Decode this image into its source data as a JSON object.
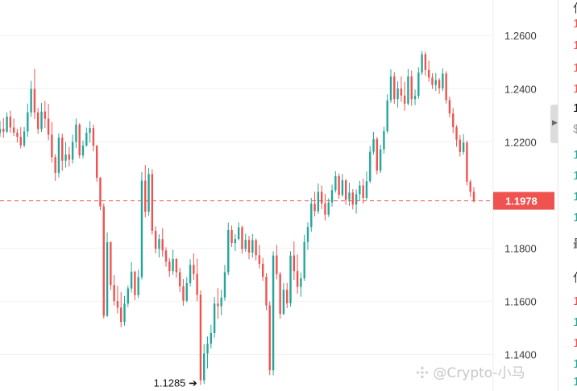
{
  "chart_data": {
    "type": "candlestick",
    "y_axis": {
      "ticks": [
        "1.2600",
        "1.2400",
        "1.2200",
        "1.1800",
        "1.1600",
        "1.1400"
      ],
      "range": [
        1.1262,
        1.2734
      ],
      "position": "right"
    },
    "current_price": {
      "value": 1.1978,
      "label": "1.1978"
    },
    "low_marker": {
      "value": 1.1285,
      "label": "1.1285 ➔"
    },
    "colors": {
      "up": "#26a69a",
      "down": "#ef5350",
      "price_line": "#ef5350",
      "grid": "#f0f0f0"
    },
    "candles": [
      [
        1.2234,
        1.2279,
        1.2219,
        1.2249
      ],
      [
        1.2249,
        1.2289,
        1.2216,
        1.2238
      ],
      [
        1.2238,
        1.2311,
        1.2233,
        1.2295
      ],
      [
        1.2295,
        1.2317,
        1.2234,
        1.2254
      ],
      [
        1.2254,
        1.2288,
        1.2222,
        1.2235
      ],
      [
        1.2235,
        1.2249,
        1.2198,
        1.2219
      ],
      [
        1.2219,
        1.2255,
        1.2175,
        1.2187
      ],
      [
        1.2187,
        1.2256,
        1.2179,
        1.2239
      ],
      [
        1.2239,
        1.2344,
        1.2219,
        1.2311
      ],
      [
        1.2311,
        1.243,
        1.2294,
        1.2399
      ],
      [
        1.2399,
        1.2474,
        1.2286,
        1.2311
      ],
      [
        1.2311,
        1.2328,
        1.223,
        1.2248
      ],
      [
        1.2248,
        1.2346,
        1.2237,
        1.2314
      ],
      [
        1.2314,
        1.2354,
        1.2253,
        1.2287
      ],
      [
        1.2287,
        1.2343,
        1.2206,
        1.2227
      ],
      [
        1.2227,
        1.2275,
        1.2122,
        1.2143
      ],
      [
        1.2143,
        1.2154,
        1.2053,
        1.2083
      ],
      [
        1.2083,
        1.2232,
        1.2066,
        1.2216
      ],
      [
        1.2216,
        1.2231,
        1.2091,
        1.2129
      ],
      [
        1.2129,
        1.2199,
        1.2102,
        1.2152
      ],
      [
        1.2152,
        1.2181,
        1.2107,
        1.2133
      ],
      [
        1.2133,
        1.2227,
        1.2118,
        1.22
      ],
      [
        1.22,
        1.2288,
        1.2177,
        1.2265
      ],
      [
        1.2265,
        1.227,
        1.2138,
        1.2149
      ],
      [
        1.2149,
        1.2205,
        1.2138,
        1.2186
      ],
      [
        1.2186,
        1.2254,
        1.2182,
        1.2234
      ],
      [
        1.2234,
        1.2278,
        1.2197,
        1.2252
      ],
      [
        1.2252,
        1.2265,
        1.2164,
        1.2185
      ],
      [
        1.2185,
        1.2189,
        1.205,
        1.2065
      ],
      [
        1.2065,
        1.2068,
        1.1943,
        1.1957
      ],
      [
        1.1957,
        1.1968,
        1.1535,
        1.1545
      ],
      [
        1.1545,
        1.1859,
        1.1541,
        1.1822
      ],
      [
        1.1822,
        1.1825,
        1.1642,
        1.1661
      ],
      [
        1.1661,
        1.1698,
        1.1584,
        1.1601
      ],
      [
        1.1601,
        1.1658,
        1.1554,
        1.1576
      ],
      [
        1.1576,
        1.1634,
        1.1502,
        1.1522
      ],
      [
        1.1522,
        1.162,
        1.1508,
        1.1591
      ],
      [
        1.1591,
        1.1659,
        1.1578,
        1.1648
      ],
      [
        1.1648,
        1.1747,
        1.1633,
        1.1711
      ],
      [
        1.1711,
        1.1715,
        1.1604,
        1.1623
      ],
      [
        1.1623,
        1.1718,
        1.1612,
        1.1691
      ],
      [
        1.1691,
        1.2086,
        1.1682,
        1.2054
      ],
      [
        1.2054,
        1.2113,
        1.1916,
        1.1937
      ],
      [
        1.1937,
        1.2101,
        1.1922,
        1.2079
      ],
      [
        1.2079,
        1.2097,
        1.1851,
        1.1865
      ],
      [
        1.1865,
        1.1882,
        1.178,
        1.1797
      ],
      [
        1.1797,
        1.1852,
        1.1765,
        1.1834
      ],
      [
        1.1834,
        1.1875,
        1.1768,
        1.1791
      ],
      [
        1.1791,
        1.1803,
        1.173,
        1.1749
      ],
      [
        1.1749,
        1.1762,
        1.1692,
        1.1713
      ],
      [
        1.1713,
        1.1794,
        1.1699,
        1.1759
      ],
      [
        1.1759,
        1.1762,
        1.1688,
        1.1709
      ],
      [
        1.1709,
        1.1726,
        1.1634,
        1.1656
      ],
      [
        1.1656,
        1.1683,
        1.1583,
        1.1602
      ],
      [
        1.1602,
        1.1691,
        1.1596,
        1.1668
      ],
      [
        1.1668,
        1.1758,
        1.1656,
        1.1737
      ],
      [
        1.1737,
        1.178,
        1.168,
        1.1703
      ],
      [
        1.1703,
        1.176,
        1.16,
        1.1624
      ],
      [
        1.1624,
        1.1641,
        1.1285,
        1.1302
      ],
      [
        1.1302,
        1.1438,
        1.1288,
        1.1403
      ],
      [
        1.1403,
        1.1467,
        1.1347,
        1.144
      ],
      [
        1.144,
        1.1511,
        1.1422,
        1.148
      ],
      [
        1.148,
        1.1616,
        1.1463,
        1.1591
      ],
      [
        1.1591,
        1.1649,
        1.1534,
        1.1581
      ],
      [
        1.1581,
        1.1643,
        1.1547,
        1.1614
      ],
      [
        1.1614,
        1.1737,
        1.1602,
        1.1709
      ],
      [
        1.1709,
        1.1896,
        1.1698,
        1.1868
      ],
      [
        1.1868,
        1.1885,
        1.1804,
        1.1819
      ],
      [
        1.1819,
        1.1852,
        1.1789,
        1.1834
      ],
      [
        1.1834,
        1.1897,
        1.1829,
        1.1878
      ],
      [
        1.1878,
        1.1885,
        1.1779,
        1.1796
      ],
      [
        1.1796,
        1.1854,
        1.1786,
        1.1831
      ],
      [
        1.1831,
        1.1846,
        1.1758,
        1.1783
      ],
      [
        1.1783,
        1.1853,
        1.1764,
        1.183
      ],
      [
        1.183,
        1.1836,
        1.1754,
        1.1773
      ],
      [
        1.1773,
        1.1812,
        1.1723,
        1.1741
      ],
      [
        1.1741,
        1.1763,
        1.1677,
        1.1692
      ],
      [
        1.1692,
        1.1706,
        1.1566,
        1.1584
      ],
      [
        1.1584,
        1.1599,
        1.1322,
        1.134
      ],
      [
        1.134,
        1.1788,
        1.1321,
        1.1772
      ],
      [
        1.1772,
        1.1812,
        1.1682,
        1.1702
      ],
      [
        1.1702,
        1.171,
        1.1534,
        1.1552
      ],
      [
        1.1552,
        1.1668,
        1.1548,
        1.1643
      ],
      [
        1.1643,
        1.1669,
        1.1574,
        1.1592
      ],
      [
        1.1592,
        1.1788,
        1.158,
        1.1772
      ],
      [
        1.1772,
        1.1825,
        1.168,
        1.1713
      ],
      [
        1.1713,
        1.1776,
        1.1628,
        1.1654
      ],
      [
        1.1654,
        1.1708,
        1.1617,
        1.1686
      ],
      [
        1.1686,
        1.185,
        1.1677,
        1.1823
      ],
      [
        1.1823,
        1.1897,
        1.1793,
        1.1879
      ],
      [
        1.1879,
        1.1989,
        1.1862,
        1.1967
      ],
      [
        1.1967,
        1.2012,
        1.1919,
        1.1939
      ],
      [
        1.1939,
        1.2043,
        1.1929,
        1.2012
      ],
      [
        1.2012,
        1.2036,
        1.1947,
        1.1968
      ],
      [
        1.1968,
        1.2004,
        1.1904,
        1.1926
      ],
      [
        1.1926,
        1.1987,
        1.1917,
        1.1972
      ],
      [
        1.1972,
        1.2039,
        1.1956,
        1.2018
      ],
      [
        1.2018,
        1.209,
        1.2009,
        1.2071
      ],
      [
        1.2071,
        1.2081,
        1.1986,
        1.2
      ],
      [
        1.2,
        1.2079,
        1.1993,
        1.2055
      ],
      [
        1.2055,
        1.206,
        1.1963,
        1.1982
      ],
      [
        1.1982,
        1.2046,
        1.1959,
        1.2009
      ],
      [
        1.2009,
        1.2022,
        1.1946,
        1.1964
      ],
      [
        1.1964,
        1.2021,
        1.193,
        1.2003
      ],
      [
        1.2003,
        1.2053,
        1.1978,
        1.2036
      ],
      [
        1.2036,
        1.2061,
        1.1967,
        1.1989
      ],
      [
        1.1989,
        1.2088,
        1.1981,
        1.2052
      ],
      [
        1.2052,
        1.2184,
        1.2044,
        1.2163
      ],
      [
        1.2163,
        1.2238,
        1.2152,
        1.221
      ],
      [
        1.221,
        1.2219,
        1.2078,
        1.2092
      ],
      [
        1.2092,
        1.2189,
        1.2083,
        1.2172
      ],
      [
        1.2172,
        1.2257,
        1.2156,
        1.224
      ],
      [
        1.224,
        1.2379,
        1.2232,
        1.2356
      ],
      [
        1.2356,
        1.2473,
        1.2347,
        1.2446
      ],
      [
        1.2446,
        1.2463,
        1.2343,
        1.2361
      ],
      [
        1.2361,
        1.2428,
        1.2329,
        1.2401
      ],
      [
        1.2401,
        1.2446,
        1.2351,
        1.2374
      ],
      [
        1.2374,
        1.2426,
        1.2317,
        1.2344
      ],
      [
        1.2344,
        1.2474,
        1.2338,
        1.2446
      ],
      [
        1.2446,
        1.2469,
        1.2336,
        1.2361
      ],
      [
        1.2361,
        1.2397,
        1.2338,
        1.2373
      ],
      [
        1.2373,
        1.2481,
        1.2362,
        1.2461
      ],
      [
        1.2461,
        1.2542,
        1.2452,
        1.253
      ],
      [
        1.253,
        1.2539,
        1.2448,
        1.2471
      ],
      [
        1.2471,
        1.2506,
        1.2426,
        1.2442
      ],
      [
        1.2442,
        1.2458,
        1.2399,
        1.2414
      ],
      [
        1.2414,
        1.2459,
        1.2392,
        1.2433
      ],
      [
        1.2433,
        1.244,
        1.2381,
        1.2402
      ],
      [
        1.2402,
        1.2476,
        1.2391,
        1.2457
      ],
      [
        1.2457,
        1.2466,
        1.2344,
        1.2357
      ],
      [
        1.2357,
        1.237,
        1.2292,
        1.2307
      ],
      [
        1.2307,
        1.2327,
        1.2233,
        1.2255
      ],
      [
        1.2255,
        1.2263,
        1.2182,
        1.2208
      ],
      [
        1.2208,
        1.2226,
        1.2145,
        1.2162
      ],
      [
        1.2162,
        1.2229,
        1.2152,
        1.2197
      ],
      [
        1.2197,
        1.2205,
        1.2036,
        1.205
      ],
      [
        1.205,
        1.2058,
        1.1993,
        1.2012
      ],
      [
        1.2012,
        1.2029,
        1.1971,
        1.1978
      ]
    ]
  },
  "side_panel": {
    "rows": [
      {
        "text": "仏",
        "color": "#333333"
      },
      {
        "text": "1",
        "color": "#ef5350"
      },
      {
        "text": "1",
        "color": "#ef5350"
      },
      {
        "text": "1",
        "color": "#ef5350"
      },
      {
        "text": "1",
        "color": "#ef5350"
      },
      {
        "text": "1",
        "color": "#111111"
      },
      {
        "text": "$",
        "color": "#999999"
      },
      {
        "text": "1",
        "color": "#26a69a"
      },
      {
        "text": "1",
        "color": "#26a69a"
      },
      {
        "text": "1",
        "color": "#26a69a"
      },
      {
        "text": "1",
        "color": "#26a69a"
      },
      {
        "text": "最",
        "color": "#333333"
      },
      {
        "text": "仏",
        "color": "#333333"
      },
      {
        "text": "1",
        "color": "#ef5350"
      },
      {
        "text": "1",
        "color": "#26a69a"
      },
      {
        "text": "1",
        "color": "#ef5350"
      },
      {
        "text": "1",
        "color": "#26a69a"
      },
      {
        "text": "1",
        "color": "#26a69a"
      }
    ],
    "collapse_icon": "caret-right-icon"
  },
  "watermark": {
    "text": "@Crypto-小马",
    "icon": "binance-logo-icon"
  }
}
